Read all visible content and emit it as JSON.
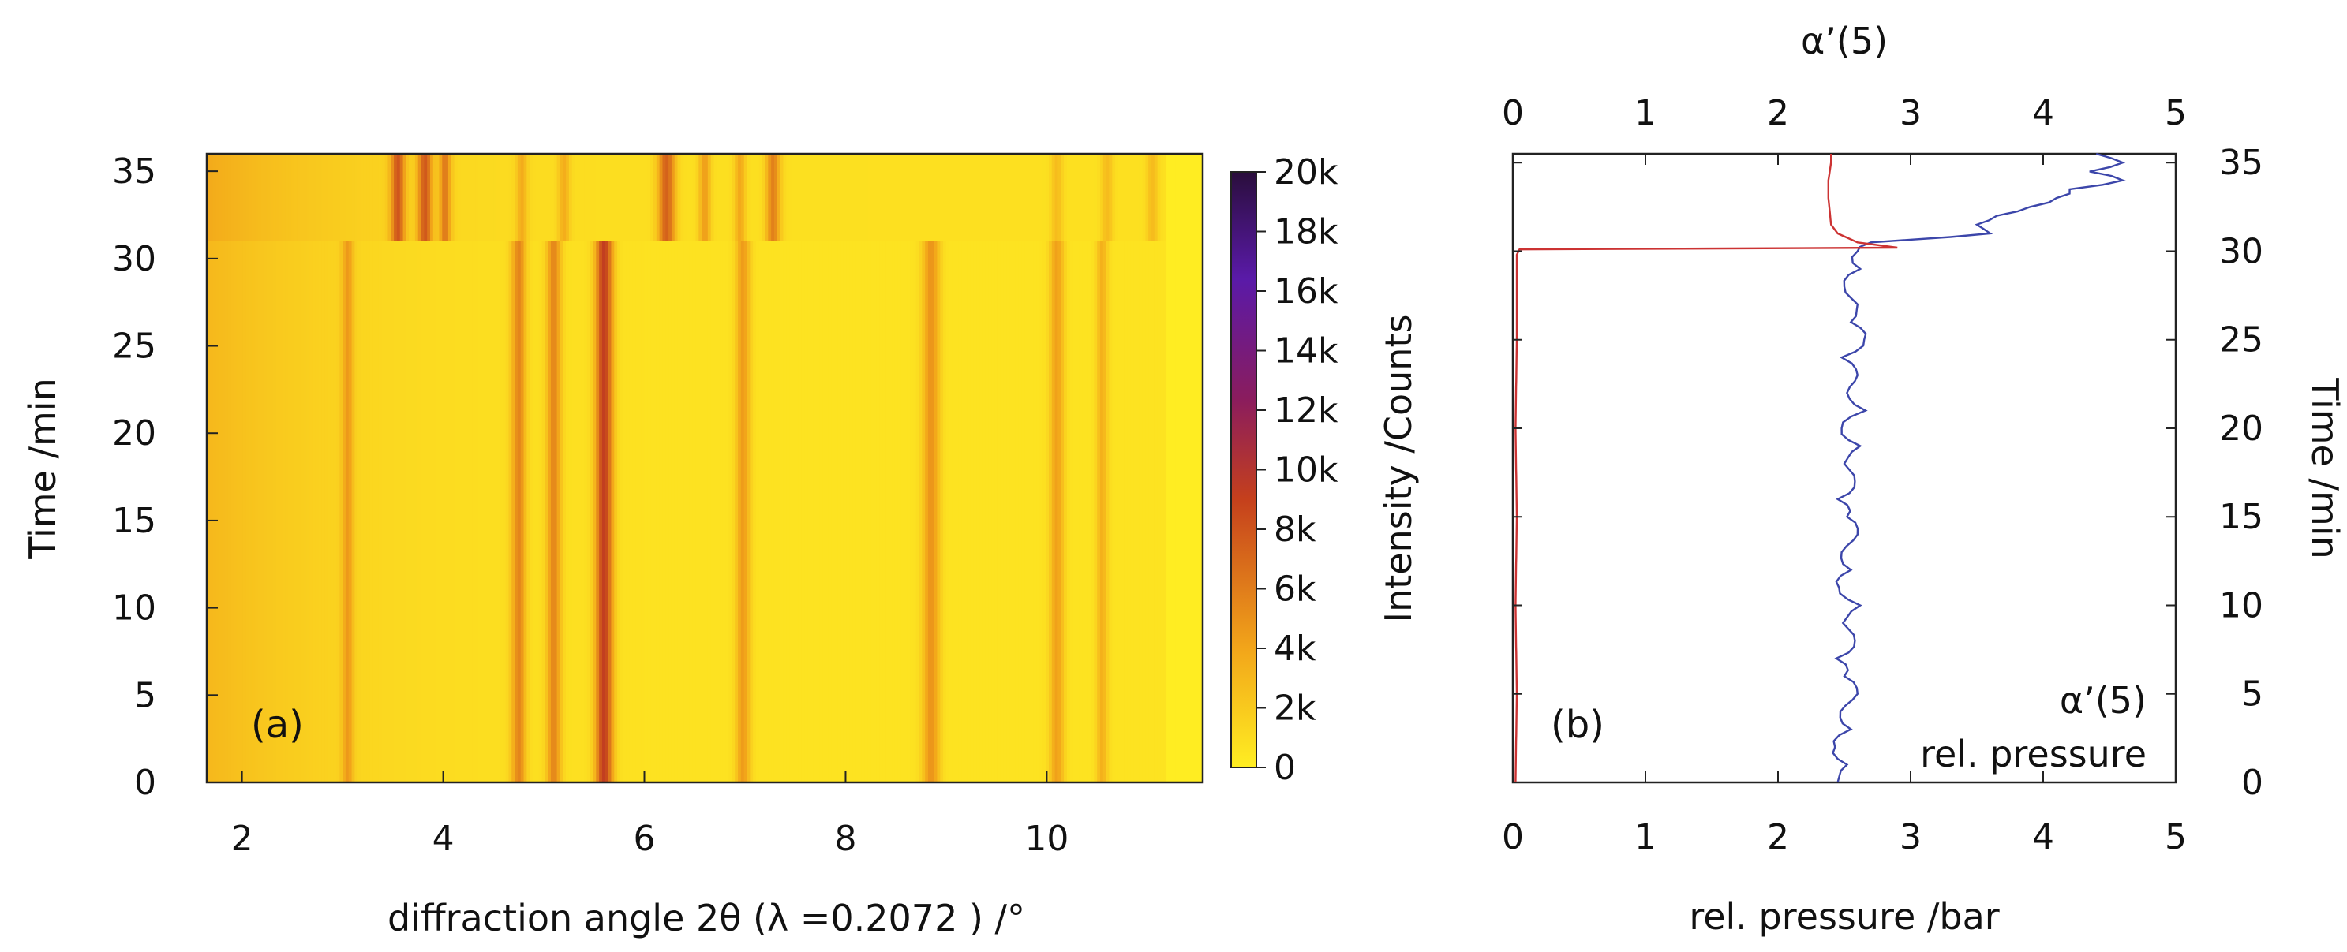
{
  "colors": {
    "low": "#ffee22",
    "mid": "#f2a51a",
    "high": "#c5401c",
    "peak": "#8a1c5e",
    "top": "#5a1aa8",
    "max": "#2a0e3c",
    "alpha_line": "#3c46aa",
    "pressure_line": "#cc3333",
    "legend_alpha": "#3a4aa8",
    "legend_pressure": "#cc3333"
  },
  "chart_data": [
    {
      "type": "heatmap",
      "panel_label": "(a)",
      "xlabel": "diffraction angle 2θ (λ =0.2072 ) /°",
      "ylabel": "Time /min",
      "xlim": [
        1.65,
        11.55
      ],
      "ylim": [
        0,
        36
      ],
      "x_ticks": [
        2,
        4,
        6,
        8,
        10
      ],
      "y_ticks": [
        0,
        5,
        10,
        15,
        20,
        25,
        30,
        35
      ],
      "transition_time": 31,
      "background": {
        "low_angle_counts": 3000,
        "high_angle_counts": 600,
        "edge_counts": 50
      },
      "peaks_before": [
        {
          "angle": 3.05,
          "width": 0.08,
          "counts": 3200
        },
        {
          "angle": 4.75,
          "width": 0.1,
          "counts": 4800
        },
        {
          "angle": 5.1,
          "width": 0.1,
          "counts": 4800
        },
        {
          "angle": 5.6,
          "width": 0.12,
          "counts": 8500
        },
        {
          "angle": 6.98,
          "width": 0.1,
          "counts": 3800
        },
        {
          "angle": 8.85,
          "width": 0.12,
          "counts": 4200
        },
        {
          "angle": 10.1,
          "width": 0.1,
          "counts": 3600
        },
        {
          "angle": 10.55,
          "width": 0.08,
          "counts": 2800
        }
      ],
      "peaks_after": [
        {
          "angle": 3.55,
          "width": 0.1,
          "counts": 6500
        },
        {
          "angle": 3.82,
          "width": 0.1,
          "counts": 6500
        },
        {
          "angle": 4.02,
          "width": 0.08,
          "counts": 5000
        },
        {
          "angle": 4.78,
          "width": 0.08,
          "counts": 2600
        },
        {
          "angle": 5.2,
          "width": 0.08,
          "counts": 2600
        },
        {
          "angle": 6.22,
          "width": 0.12,
          "counts": 6500
        },
        {
          "angle": 6.6,
          "width": 0.08,
          "counts": 3600
        },
        {
          "angle": 6.95,
          "width": 0.08,
          "counts": 3000
        },
        {
          "angle": 7.28,
          "width": 0.1,
          "counts": 5000
        },
        {
          "angle": 10.1,
          "width": 0.08,
          "counts": 2000
        },
        {
          "angle": 10.6,
          "width": 0.08,
          "counts": 2000
        },
        {
          "angle": 11.05,
          "width": 0.08,
          "counts": 2000
        }
      ],
      "colorbar": {
        "title": "Intensity /Counts",
        "range": [
          0,
          20000
        ],
        "tick_values": [
          0,
          2000,
          4000,
          6000,
          8000,
          10000,
          12000,
          14000,
          16000,
          18000,
          20000
        ],
        "tick_labels": [
          "0",
          "2k",
          "4k",
          "6k",
          "8k",
          "10k",
          "12k",
          "14k",
          "16k",
          "18k",
          "20k"
        ]
      }
    },
    {
      "type": "line",
      "panel_label": "(b)",
      "xlabel_bottom": "rel. pressure /bar",
      "xlabel_top": "α’(5)",
      "ylabel_right": "Time /min",
      "x_bottom_ticks": [
        0,
        1,
        2,
        3,
        4,
        5
      ],
      "x_top_ticks": [
        0,
        1,
        2,
        3,
        4,
        5
      ],
      "xlim": [
        0,
        5
      ],
      "ylim": [
        0,
        35.5
      ],
      "y_ticks": [
        0,
        5,
        10,
        15,
        20,
        25,
        30,
        35
      ],
      "series": [
        {
          "name": "α’(5)",
          "axis": "top",
          "points": [
            [
              2.45,
              0
            ],
            [
              2.52,
              1
            ],
            [
              2.43,
              2
            ],
            [
              2.55,
              3
            ],
            [
              2.47,
              4
            ],
            [
              2.6,
              5
            ],
            [
              2.5,
              6
            ],
            [
              2.44,
              7
            ],
            [
              2.58,
              8
            ],
            [
              2.49,
              9
            ],
            [
              2.62,
              10
            ],
            [
              2.46,
              11
            ],
            [
              2.55,
              12
            ],
            [
              2.48,
              13
            ],
            [
              2.6,
              14
            ],
            [
              2.52,
              15
            ],
            [
              2.45,
              16
            ],
            [
              2.58,
              17
            ],
            [
              2.5,
              18
            ],
            [
              2.62,
              19
            ],
            [
              2.48,
              20
            ],
            [
              2.66,
              21
            ],
            [
              2.52,
              22
            ],
            [
              2.6,
              23
            ],
            [
              2.48,
              24
            ],
            [
              2.65,
              25
            ],
            [
              2.55,
              26
            ],
            [
              2.6,
              27
            ],
            [
              2.5,
              28
            ],
            [
              2.62,
              29
            ],
            [
              2.6,
              30
            ],
            [
              2.7,
              30.5
            ],
            [
              3.3,
              30.8
            ],
            [
              3.6,
              31
            ],
            [
              3.5,
              31.5
            ],
            [
              3.65,
              32
            ],
            [
              3.9,
              32.5
            ],
            [
              4.1,
              33
            ],
            [
              4.2,
              33.5
            ],
            [
              4.6,
              34
            ],
            [
              4.35,
              34.5
            ],
            [
              4.6,
              35
            ],
            [
              4.4,
              35.5
            ]
          ]
        },
        {
          "name": "rel. pressure",
          "axis": "bottom",
          "points": [
            [
              0.02,
              0
            ],
            [
              0.03,
              5
            ],
            [
              0.02,
              10
            ],
            [
              0.03,
              15
            ],
            [
              0.02,
              20
            ],
            [
              0.03,
              25
            ],
            [
              0.03,
              29.8
            ],
            [
              0.05,
              30.1
            ],
            [
              2.9,
              30.2
            ],
            [
              2.6,
              30.5
            ],
            [
              2.45,
              31
            ],
            [
              2.4,
              31.5
            ],
            [
              2.38,
              33
            ],
            [
              2.38,
              34
            ],
            [
              2.4,
              35
            ],
            [
              2.4,
              35.5
            ]
          ]
        }
      ]
    }
  ]
}
